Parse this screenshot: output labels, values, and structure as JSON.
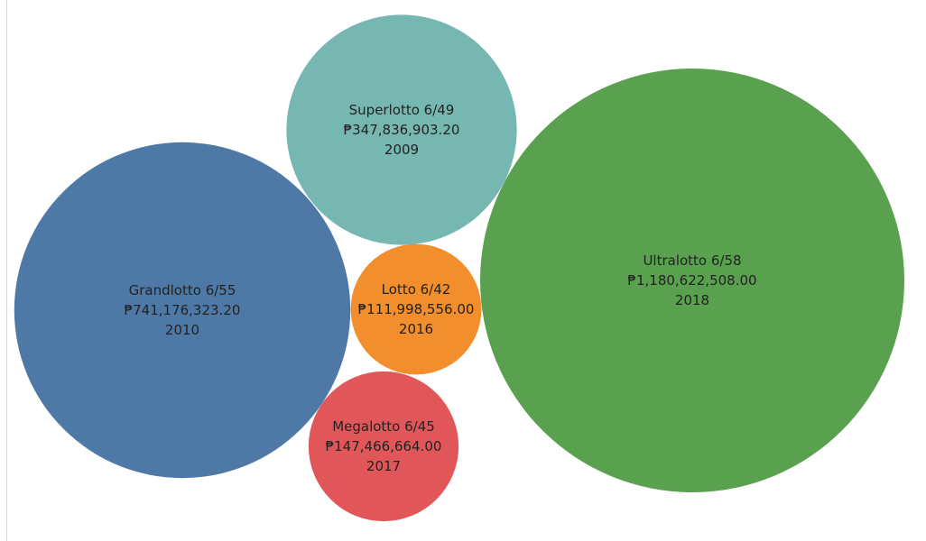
{
  "chart_data": {
    "type": "bubble",
    "size_measure": "jackpot",
    "bubbles": [
      {
        "name": "Ultralotto 6/58",
        "value_label": "₱1,180,622,508.00",
        "value": 1180622508.0,
        "year": "2018",
        "color": "#59a14f"
      },
      {
        "name": "Grandlotto 6/55",
        "value_label": "₱741,176,323.20",
        "value": 741176323.2,
        "year": "2010",
        "color": "#4e79a7"
      },
      {
        "name": "Superlotto 6/49",
        "value_label": "₱347,836,903.20",
        "value": 347836903.2,
        "year": "2009",
        "color": "#76b7b2"
      },
      {
        "name": "Megalotto 6/45",
        "value_label": "₱147,466,664.00",
        "value": 147466664.0,
        "year": "2017",
        "color": "#e15759"
      },
      {
        "name": "Lotto 6/42",
        "value_label": "₱111,998,556.00",
        "value": 111998556.0,
        "year": "2016",
        "color": "#f28e2b"
      }
    ]
  }
}
